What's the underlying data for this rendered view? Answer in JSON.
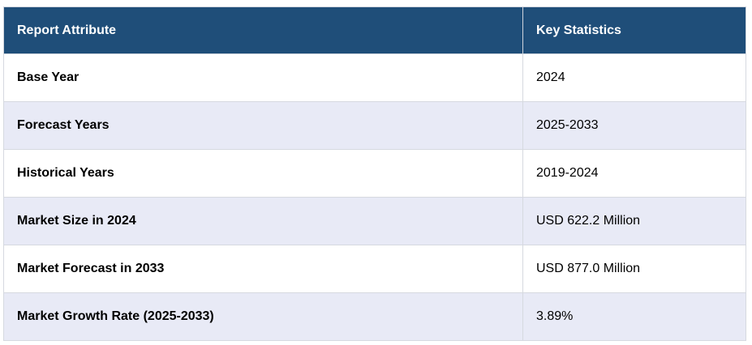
{
  "table": {
    "headers": {
      "attribute": "Report Attribute",
      "statistics": "Key Statistics"
    },
    "rows": [
      {
        "attribute": "Base Year",
        "value": "2024"
      },
      {
        "attribute": "Forecast Years",
        "value": "2025-2033"
      },
      {
        "attribute": "Historical Years",
        "value": "2019-2024"
      },
      {
        "attribute": "Market Size in 2024",
        "value": "USD 622.2 Million"
      },
      {
        "attribute": "Market Forecast in 2033",
        "value": "USD 877.0 Million"
      },
      {
        "attribute": "Market Growth Rate (2025-2033)",
        "value": "3.89%"
      }
    ]
  },
  "colors": {
    "header_background": "#1f4e79",
    "header_text": "#ffffff",
    "stripe_background": "#e8eaf6"
  }
}
